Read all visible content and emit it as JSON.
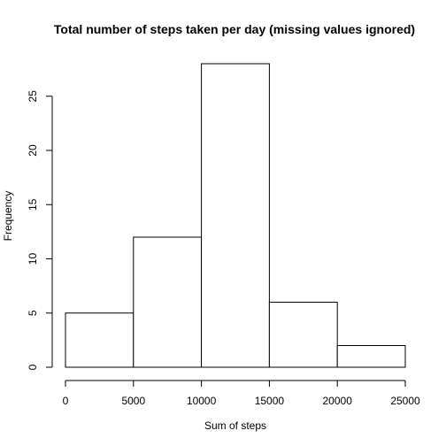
{
  "chart_data": {
    "type": "bar",
    "title": "Total number of steps taken per day (missing values ignored)",
    "xlabel": "Sum of steps",
    "ylabel": "Frequency",
    "bins": [
      {
        "from": 0,
        "to": 5000,
        "count": 5
      },
      {
        "from": 5000,
        "to": 10000,
        "count": 12
      },
      {
        "from": 10000,
        "to": 15000,
        "count": 28
      },
      {
        "from": 15000,
        "to": 20000,
        "count": 6
      },
      {
        "from": 20000,
        "to": 25000,
        "count": 2
      }
    ],
    "xlim": [
      0,
      25000
    ],
    "ylim": [
      0,
      28
    ],
    "x_ticks": [
      0,
      5000,
      10000,
      15000,
      20000,
      25000
    ],
    "y_ticks": [
      0,
      5,
      10,
      15,
      20,
      25
    ],
    "grid": false
  }
}
